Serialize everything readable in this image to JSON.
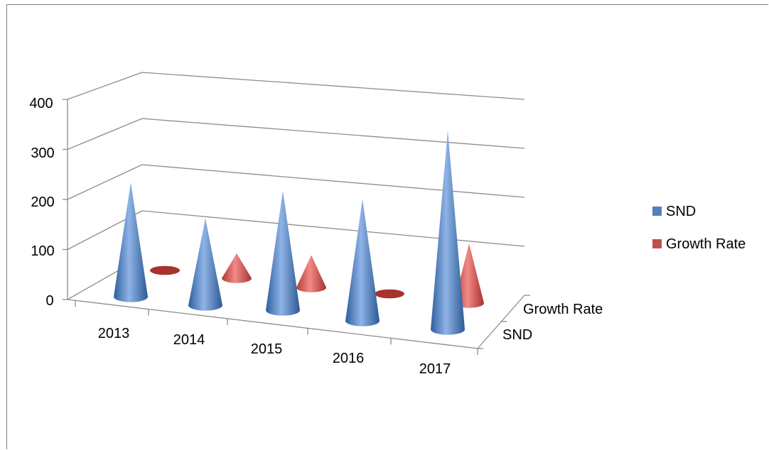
{
  "chart_data": {
    "type": "bar",
    "subtype": "3d-cone",
    "title": "",
    "categories": [
      "2013",
      "2014",
      "2015",
      "2016",
      "2017"
    ],
    "series": [
      {
        "name": "SND",
        "values": [
          230,
          175,
          240,
          245,
          400
        ],
        "color": "#4f81bd"
      },
      {
        "name": "Growth Rate",
        "values": [
          0,
          50,
          65,
          0,
          120
        ],
        "color": "#c0504d"
      }
    ],
    "depth_labels": [
      "Growth Rate",
      "SND"
    ],
    "yticks": [
      "0",
      "100",
      "200",
      "300",
      "400"
    ],
    "ylim": [
      0,
      400
    ],
    "grid": true,
    "legend_position": "right",
    "legend": [
      "SND",
      "Growth Rate"
    ]
  }
}
